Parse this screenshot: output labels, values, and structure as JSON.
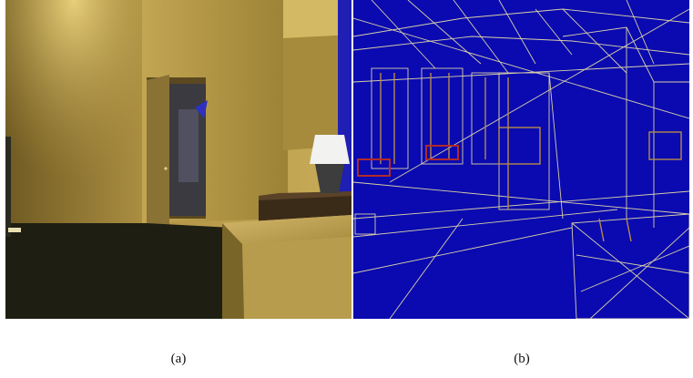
{
  "figure": {
    "panels": [
      {
        "caption": "(a)",
        "content": "shaded-render",
        "colors": {
          "wall_light": "#c9ad5a",
          "wall_dark": "#8b7430",
          "floor": "#1e1f12",
          "door": "#7a6430",
          "lamp_shade": "#f2f2f0",
          "lamp_base": "#3d3d3d",
          "curtain": "#1f1fb3",
          "bed": "#b89c4e"
        }
      },
      {
        "caption": "(b)",
        "content": "wireframe-render",
        "colors": {
          "background": "#0a0ab0",
          "wire_light": "#d9cfa8",
          "wire_tan": "#b58a4a",
          "wire_red": "#b02a2a"
        }
      }
    ]
  }
}
